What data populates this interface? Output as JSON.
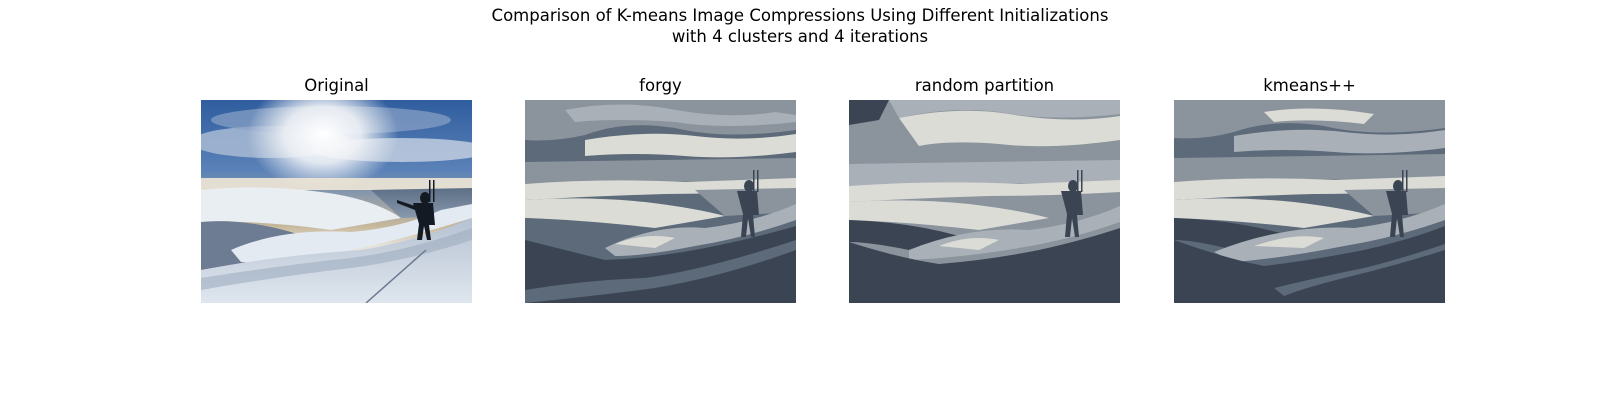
{
  "figure": {
    "title_line1": "Comparison of K-means Image Compressions Using Different Initializations",
    "title_line2": "with 4 clusters and 4 iterations"
  },
  "panels": [
    {
      "title": "Original",
      "kind": "photo"
    },
    {
      "title": "forgy",
      "kind": "quantized"
    },
    {
      "title": "random partition",
      "kind": "quantized"
    },
    {
      "title": "kmeans++",
      "kind": "quantized"
    }
  ],
  "palette": {
    "sky_blue": "#3d68a8",
    "photo_cloud": "#e9eef3",
    "photo_shadow": "#2a3240",
    "q_light": "#dcdcd6",
    "q_mid": "#8b939d",
    "q_midlight": "#a9b0b8",
    "q_dark": "#5d6a7a",
    "q_darkest": "#3b4452"
  }
}
